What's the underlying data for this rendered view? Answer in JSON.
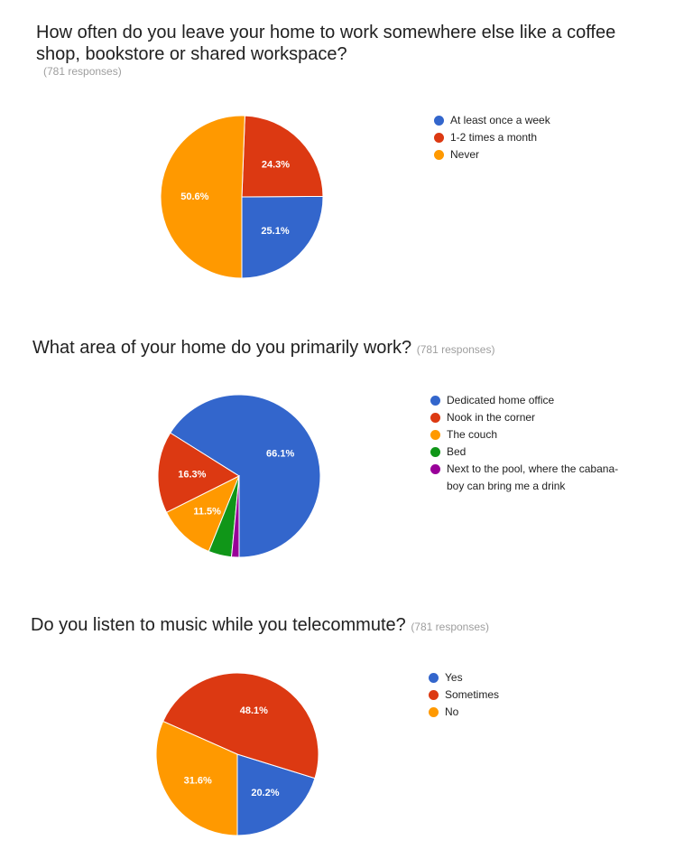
{
  "colors": {
    "blue": "#3366cc",
    "red": "#dc3912",
    "orange": "#ff9900",
    "green": "#109618",
    "purple": "#990099"
  },
  "chart_data": [
    {
      "type": "pie",
      "title": "How often do you leave your home to work somewhere else like a coffee shop, bookstore or shared workspace?",
      "responses": "(781 responses)",
      "categories": [
        "At least once a week",
        "1-2 times a month",
        "Never"
      ],
      "values": [
        25.1,
        24.3,
        50.6
      ],
      "labels": [
        "25.1%",
        "24.3%",
        "50.6%"
      ],
      "colors": [
        "#3366cc",
        "#dc3912",
        "#ff9900"
      ],
      "legend": "right"
    },
    {
      "type": "pie",
      "title": "What area of your home do you primarily work?",
      "responses": "(781 responses)",
      "categories": [
        "Dedicated home office",
        "Nook in the corner",
        "The couch",
        "Bed",
        "Next to the pool, where the cabana-boy can bring me a drink"
      ],
      "values": [
        66.1,
        16.3,
        11.5,
        4.6,
        1.5
      ],
      "labels": [
        "66.1%",
        "16.3%",
        "11.5%",
        "",
        ""
      ],
      "colors": [
        "#3366cc",
        "#dc3912",
        "#ff9900",
        "#109618",
        "#990099"
      ],
      "legend": "right"
    },
    {
      "type": "pie",
      "title": "Do you listen to music while you telecommute?",
      "responses": "(781 responses)",
      "categories": [
        "Yes",
        "Sometimes",
        "No"
      ],
      "values": [
        20.2,
        48.1,
        31.6
      ],
      "labels": [
        "20.2%",
        "48.1%",
        "31.6%"
      ],
      "colors": [
        "#3366cc",
        "#dc3912",
        "#ff9900"
      ],
      "legend": "right"
    }
  ]
}
